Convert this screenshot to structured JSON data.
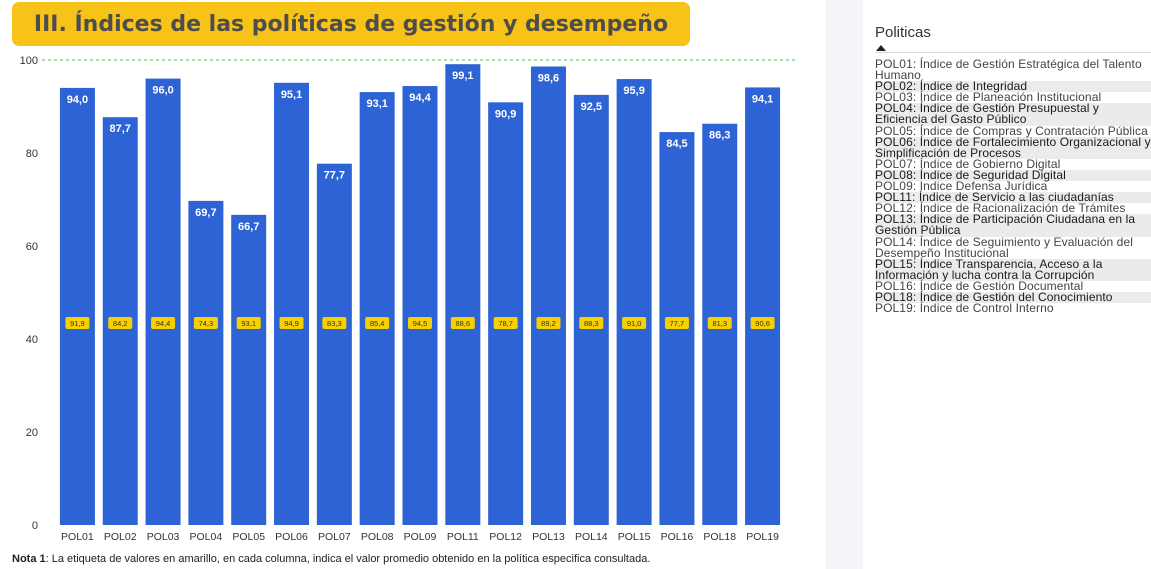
{
  "title": "III. Índices de las políticas de gestión y desempeño",
  "note": {
    "label": "Nota 1",
    "text": ": La etiqueta de valores en amarillo, en cada columna, indica el valor promedio obtenido en la política especifica consultada."
  },
  "colors": {
    "bar": "#2e63d6",
    "avg_label_bg": "#f7d000",
    "banner": "#f7c318",
    "reference_line": "#7fc47f"
  },
  "chart_data": {
    "type": "bar",
    "categories": [
      "POL01",
      "POL02",
      "POL03",
      "POL04",
      "POL05",
      "POL06",
      "POL07",
      "POL08",
      "POL09",
      "POL11",
      "POL12",
      "POL13",
      "POL14",
      "POL15",
      "POL16",
      "POL18",
      "POL19"
    ],
    "series": [
      {
        "values": [
          94.0,
          87.7,
          96.0,
          69.7,
          66.7,
          95.1,
          77.7,
          93.1,
          94.4,
          99.1,
          90.9,
          98.6,
          92.5,
          95.9,
          84.5,
          86.3,
          94.1
        ],
        "labels": [
          "94,0",
          "87,7",
          "96,0",
          "69,7",
          "66,7",
          "95,1",
          "77,7",
          "93,1",
          "94,4",
          "99,1",
          "90,9",
          "98,6",
          "92,5",
          "95,9",
          "84,5",
          "86,3",
          "94,1"
        ]
      },
      {
        "values": [
          91.9,
          84.2,
          94.4,
          74.3,
          93.1,
          94.9,
          83.3,
          85.4,
          94.5,
          88.6,
          78.7,
          89.2,
          88.3,
          91.0,
          77.7,
          81.3,
          90.6
        ],
        "labels": [
          "91,9",
          "84,2",
          "94,4",
          "74,3",
          "93,1",
          "94,9",
          "83,3",
          "85,4",
          "94,5",
          "88,6",
          "78,7",
          "89,2",
          "88,3",
          "91,0",
          "77,7",
          "81,3",
          "90,6"
        ]
      }
    ],
    "ylim": [
      0,
      100
    ],
    "yticks": [
      "0",
      "20",
      "40",
      "60",
      "80",
      "100"
    ],
    "reference_line": 100,
    "grid": false
  },
  "slicer": {
    "title": "Politicas",
    "items": [
      {
        "label": "POL01: Índice de Gestión Estratégica del Talento Humano",
        "selected": false
      },
      {
        "label": "POL02: Índice de Integridad",
        "selected": true
      },
      {
        "label": "POL03: Índice de Planeación Institucional",
        "selected": false
      },
      {
        "label": "POL04: Índice de Gestión Presupuestal y Eficiencia del Gasto Público",
        "selected": true
      },
      {
        "label": "POL05: Índice de Compras y Contratación Pública",
        "selected": false
      },
      {
        "label": "POL06: Índice de Fortalecimiento Organizacional y Simplificación de Procesos",
        "selected": true
      },
      {
        "label": "POL07: Índice de Gobierno Digital",
        "selected": false
      },
      {
        "label": "POL08: Índice de Seguridad Digital",
        "selected": true
      },
      {
        "label": "POL09: Indice Defensa Jurídica",
        "selected": false
      },
      {
        "label": "POL11: Índice de Servicio a las ciudadanías",
        "selected": true
      },
      {
        "label": "POL12: Índice de Racionalización de Trámites",
        "selected": false
      },
      {
        "label": "POL13: Índice de Participación Ciudadana en la Gestión Pública",
        "selected": true
      },
      {
        "label": "POL14: Índice de Seguimiento y Evaluación del Desempeño Institucional",
        "selected": false
      },
      {
        "label": "POL15: Índice Transparencia, Acceso a la Información y lucha contra la Corrupción",
        "selected": true
      },
      {
        "label": "POL16: Índice de Gestión Documental",
        "selected": false
      },
      {
        "label": "POL18: Índice de Gestión del Conocimiento",
        "selected": true
      },
      {
        "label": "POL19: Índice de Control Interno",
        "selected": false
      }
    ]
  }
}
